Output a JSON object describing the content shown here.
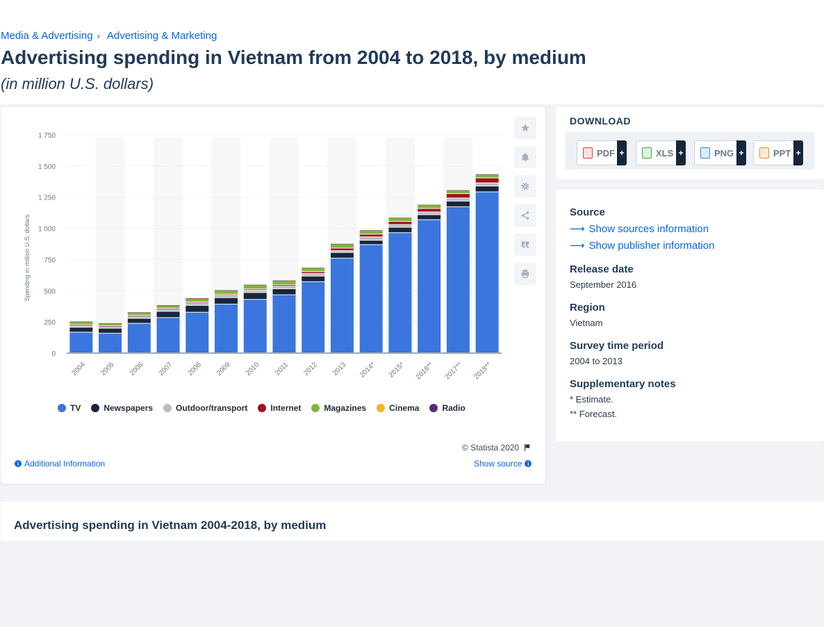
{
  "breadcrumb": {
    "item1": "Media & Advertising",
    "separator": "›",
    "item2": "Advertising & Marketing"
  },
  "page": {
    "title": "Advertising spending in Vietnam from 2004 to 2018, by medium",
    "subtitle": "(in million U.S. dollars)"
  },
  "toolbar": {
    "icons": [
      "star-icon",
      "bell-icon",
      "gear-icon",
      "share-icon",
      "quote-icon",
      "print-icon"
    ]
  },
  "chart_footer": {
    "copyright": "© Statista 2020",
    "additional_info": "Additional Information",
    "show_source": "Show source"
  },
  "download": {
    "title": "DOWNLOAD",
    "buttons": [
      {
        "label": "PDF",
        "color": "#e23b3b"
      },
      {
        "label": "XLS",
        "color": "#3aa64a"
      },
      {
        "label": "PNG",
        "color": "#2c88d9"
      },
      {
        "label": "PPT",
        "color": "#f08a24"
      }
    ],
    "plus": "+"
  },
  "info": {
    "source_heading": "Source",
    "show_sources": "Show sources information",
    "show_publisher": "Show publisher information",
    "release_heading": "Release date",
    "release_value": "September 2016",
    "region_heading": "Region",
    "region_value": "Vietnam",
    "survey_heading": "Survey time period",
    "survey_value": "2004 to 2013",
    "notes_heading": "Supplementary notes",
    "note1": "* Estimate.",
    "note2": "** Forecast."
  },
  "bottom": {
    "title": "Advertising spending in Vietnam 2004-2018, by medium"
  },
  "chart_data": {
    "type": "bar",
    "stacked": true,
    "categories": [
      "2004",
      "2005",
      "2006",
      "2007",
      "2008",
      "2009",
      "2010",
      "2011",
      "2012",
      "2013",
      "2014*",
      "2015*",
      "2016**",
      "2017**",
      "2018**"
    ],
    "ylabel": "Spending in million U.S. dollars",
    "ylim": [
      0,
      1750
    ],
    "yticks": [
      0,
      250,
      500,
      750,
      1000,
      1250,
      1500,
      1750
    ],
    "ytick_labels": [
      "0",
      "250",
      "500",
      "750",
      "1 000",
      "1 250",
      "1 500",
      "1 750"
    ],
    "grid": true,
    "legend_position": "bottom",
    "series": [
      {
        "name": "TV",
        "color": "#3a76dd",
        "values": [
          165,
          157,
          236,
          282,
          325,
          390,
          428,
          465,
          570,
          759,
          867,
          963,
          1067,
          1171,
          1290
        ]
      },
      {
        "name": "Newspapers",
        "color": "#17263a",
        "values": [
          40,
          40,
          40,
          50,
          55,
          52,
          55,
          48,
          45,
          45,
          35,
          43,
          40,
          45,
          47
        ]
      },
      {
        "name": "Outdoor/transport",
        "color": "#b8bcc2",
        "values": [
          18,
          17,
          20,
          20,
          22,
          20,
          18,
          20,
          20,
          15,
          27,
          22,
          22,
          25,
          25
        ]
      },
      {
        "name": "Internet",
        "color": "#a3111c",
        "values": [
          3,
          3,
          4,
          5,
          6,
          8,
          10,
          12,
          15,
          20,
          22,
          25,
          28,
          35,
          40
        ]
      },
      {
        "name": "Magazines",
        "color": "#7cb83b",
        "values": [
          25,
          20,
          25,
          25,
          30,
          32,
          35,
          35,
          32,
          35,
          32,
          30,
          30,
          28,
          30
        ]
      },
      {
        "name": "Cinema",
        "color": "#f1b629",
        "values": [
          1,
          1,
          1,
          1,
          1,
          1,
          1,
          1,
          1,
          1,
          1,
          1,
          1,
          1,
          1
        ]
      },
      {
        "name": "Radio",
        "color": "#5a2680",
        "values": [
          1,
          1,
          1,
          1,
          1,
          1,
          1,
          1,
          1,
          1,
          1,
          1,
          1,
          1,
          1
        ]
      }
    ]
  }
}
